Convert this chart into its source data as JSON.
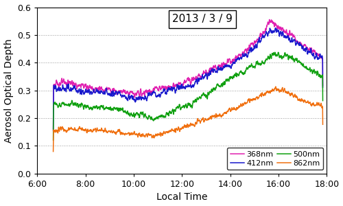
{
  "title": "2013 / 3 / 9",
  "xlabel": "Local Time",
  "ylabel": "Aerosol Optical Depth",
  "xlim": [
    360,
    1080
  ],
  "ylim": [
    0.0,
    0.6
  ],
  "yticks": [
    0.0,
    0.1,
    0.2,
    0.3,
    0.4,
    0.5,
    0.6
  ],
  "xtick_labels": [
    "6:00",
    "8:00",
    "10:00",
    "12:00",
    "14:00",
    "16:00",
    "18:00"
  ],
  "xtick_positions": [
    360,
    480,
    600,
    720,
    840,
    960,
    1080
  ],
  "colors": {
    "368nm": "#e020b0",
    "412nm": "#1818cc",
    "500nm": "#10a010",
    "862nm": "#f07010"
  },
  "line_width": 1.1,
  "background_color": "#ffffff",
  "grid_color": "#999999",
  "title_fontsize": 11,
  "label_fontsize": 10,
  "tick_fontsize": 9
}
